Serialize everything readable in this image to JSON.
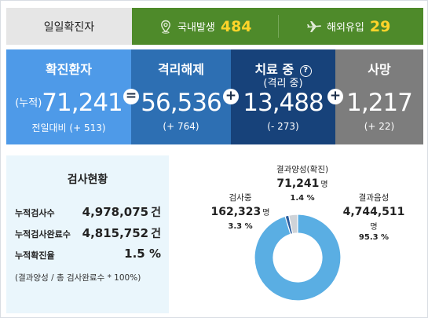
{
  "header": {
    "daily_label": "일일확진자",
    "domestic": {
      "label": "국내발생",
      "value": "484",
      "icon": "location-pin-icon"
    },
    "overseas": {
      "label": "해외유입",
      "value": "29",
      "icon": "airplane-icon"
    }
  },
  "stats": {
    "confirmed": {
      "title": "확진환자",
      "prefix": "(누적)",
      "value": "71,241",
      "delta": "전일대비 (+ 513)"
    },
    "released": {
      "title": "격리해제",
      "value": "56,536",
      "delta": "(+ 764)"
    },
    "treatment": {
      "title": "치료 중",
      "subtitle": "(격리 중)",
      "value": "13,488",
      "delta": "(- 273)",
      "help_icon": "question-circle-icon"
    },
    "deaths": {
      "title": "사망",
      "value": "1,217",
      "delta": "(+ 22)"
    },
    "operators": [
      "=",
      "+",
      "+",
      "+"
    ]
  },
  "tests": {
    "title": "검사현황",
    "rows": [
      {
        "label": "누적검사수",
        "value": "4,978,075",
        "unit": "건"
      },
      {
        "label": "누적검사완료수",
        "value": "4,815,752",
        "unit": "건"
      },
      {
        "label": "누적확진율",
        "value": "1.5 %",
        "unit": ""
      }
    ],
    "note": "(결과양성 / 총 검사완료수 * 100%)"
  },
  "pie": {
    "positive": {
      "caption": "결과양성(확진)",
      "value": "71,241",
      "unit": "명",
      "pct": "1.4 %",
      "share": 1.4,
      "color": "#2a5c9e"
    },
    "testing": {
      "caption": "검사중",
      "value": "162,323",
      "unit": "명",
      "pct": "3.3 %",
      "share": 3.3,
      "color": "#cfd3d8"
    },
    "negative": {
      "caption": "결과음성",
      "value": "4,744,511",
      "unit": "명",
      "pct": "95.3 %",
      "share": 95.3,
      "color": "#5aaee3"
    }
  }
}
